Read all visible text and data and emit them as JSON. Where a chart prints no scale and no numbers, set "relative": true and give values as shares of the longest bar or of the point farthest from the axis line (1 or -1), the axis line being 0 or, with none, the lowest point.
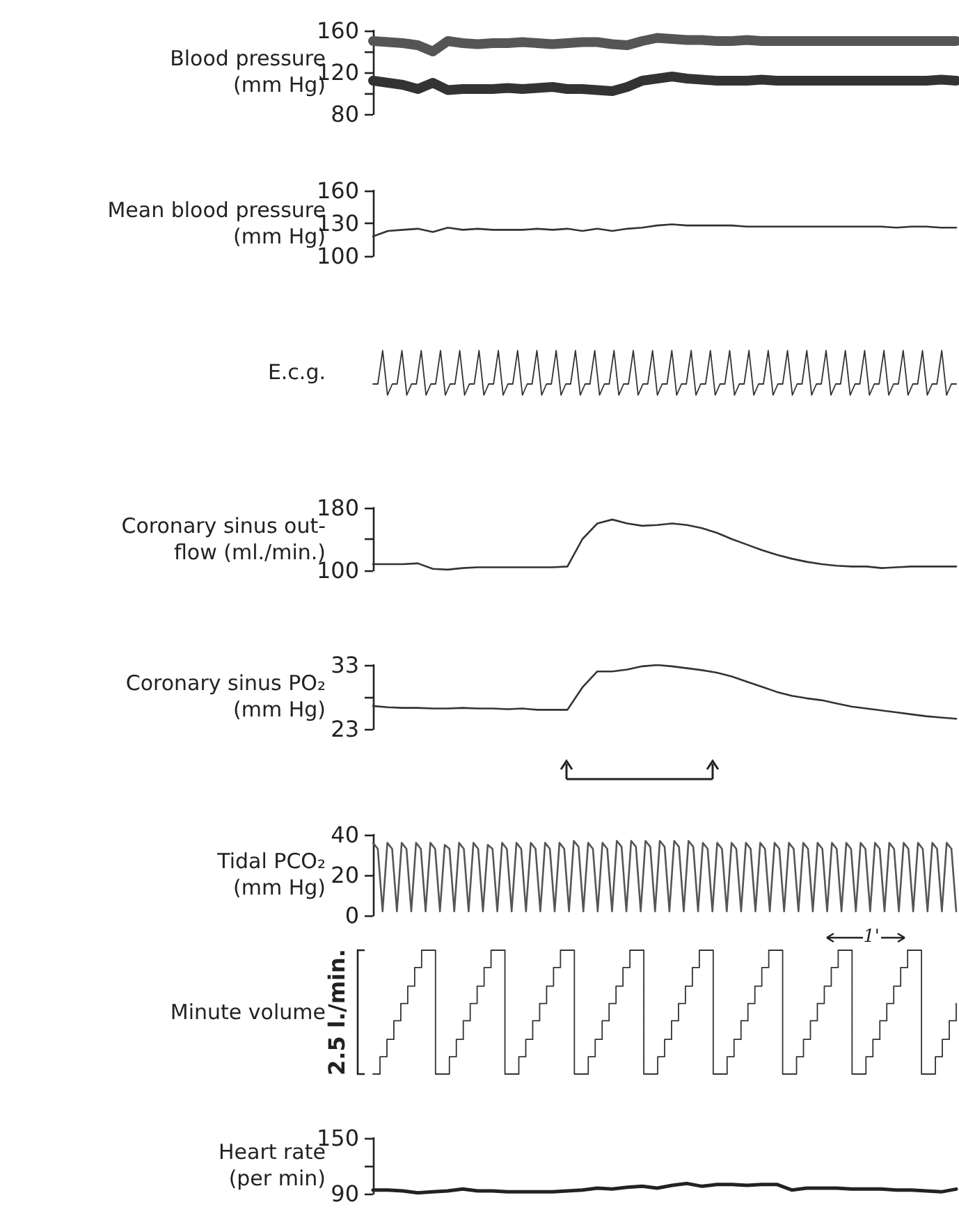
{
  "chart_data": [
    {
      "type": "line",
      "ylabel": "Blood pressure\n(mm Hg)",
      "ylim": [
        80,
        160
      ],
      "yticks": [
        80,
        {
          "value": 100,
          "label": null
        },
        120,
        {
          "value": 140,
          "label": null
        },
        160
      ],
      "tick_labels": "y",
      "grid": false,
      "marker": "none",
      "categories": [
        null,
        null,
        null,
        null,
        null,
        null,
        null,
        null,
        null,
        null,
        null,
        null,
        null,
        null,
        null,
        null,
        null,
        null,
        null,
        null,
        null,
        null,
        null,
        null,
        null,
        null,
        null,
        null,
        null,
        null,
        null,
        null,
        null,
        null,
        null,
        null,
        null,
        null,
        null,
        null
      ],
      "series": [
        {
          "color": "#555555",
          "values": [
            150,
            149,
            148,
            146,
            140,
            150,
            148,
            147,
            148,
            148,
            149,
            148,
            147,
            148,
            149,
            149,
            147,
            146,
            150,
            153,
            152,
            151,
            151,
            150,
            150,
            151,
            150,
            150,
            150,
            150,
            150,
            150,
            150,
            150,
            150,
            150,
            150,
            150,
            150,
            150
          ]
        },
        {
          "color": "#333333",
          "values": [
            112,
            110,
            108,
            104,
            110,
            103,
            104,
            104,
            104,
            105,
            104,
            105,
            106,
            104,
            104,
            103,
            102,
            106,
            112,
            114,
            116,
            114,
            113,
            112,
            112,
            112,
            113,
            112,
            112,
            112,
            112,
            112,
            112,
            112,
            112,
            112,
            112,
            112,
            113,
            112
          ]
        }
      ]
    },
    {
      "type": "line",
      "ylabel": "Mean blood pressure\n(mm Hg)",
      "ylim": [
        100,
        160
      ],
      "yticks": [
        100,
        130,
        160
      ],
      "tick_labels": "y",
      "grid": false,
      "marker": "none",
      "categories": [
        null,
        null,
        null,
        null,
        null,
        null,
        null,
        null,
        null,
        null,
        null,
        null,
        null,
        null,
        null,
        null,
        null,
        null,
        null,
        null,
        null,
        null,
        null,
        null,
        null,
        null,
        null,
        null,
        null,
        null,
        null,
        null,
        null,
        null,
        null,
        null,
        null,
        null,
        null,
        null
      ],
      "series": [
        {
          "color": "#333333",
          "values": [
            118,
            123,
            124,
            125,
            122,
            126,
            124,
            125,
            124,
            124,
            124,
            125,
            124,
            125,
            123,
            125,
            123,
            125,
            126,
            128,
            129,
            128,
            128,
            128,
            128,
            127,
            127,
            127,
            127,
            127,
            127,
            127,
            127,
            127,
            127,
            126,
            127,
            127,
            126,
            126
          ]
        }
      ]
    },
    {
      "type": "line",
      "ylabel": "E.c.g.",
      "relative": true,
      "tick_labels": false,
      "grid": false,
      "marker": "none",
      "categories": [
        null,
        null,
        null,
        null,
        null,
        null,
        null,
        null,
        null,
        null,
        null,
        null,
        null,
        null,
        null,
        null,
        null,
        null,
        null,
        null,
        null,
        null,
        null,
        null,
        null,
        null,
        null,
        null,
        null,
        null,
        null,
        null,
        null,
        null,
        null,
        null,
        null,
        null,
        null,
        null,
        null,
        null,
        null,
        null,
        null,
        null,
        null,
        null,
        null,
        null,
        null,
        null,
        null,
        null,
        null,
        null,
        null,
        null,
        null,
        null,
        null,
        null,
        null,
        null,
        null,
        null,
        null,
        null,
        null,
        null,
        null,
        null,
        null,
        null,
        null,
        null,
        null,
        null,
        null,
        null,
        null,
        null,
        null,
        null,
        null,
        null,
        null,
        null,
        null,
        null,
        null,
        null,
        null,
        null,
        null,
        null,
        null,
        null,
        null,
        null,
        null,
        null,
        null,
        null,
        null,
        null,
        null,
        null,
        null,
        null,
        null,
        null,
        null,
        null,
        null,
        null,
        null,
        null,
        null,
        null,
        null,
        null
      ],
      "series": [
        {
          "color": "#333333",
          "values": [
            0.25,
            0.25,
            1,
            0,
            0.25,
            0.25,
            1,
            0,
            0.25,
            0.25,
            1,
            0,
            0.25,
            0.25,
            1,
            0,
            0.25,
            0.25,
            1,
            0,
            0.25,
            0.25,
            1,
            0,
            0.25,
            0.25,
            1,
            0,
            0.25,
            0.25,
            1,
            0,
            0.25,
            0.25,
            1,
            0,
            0.25,
            0.25,
            1,
            0,
            0.25,
            0.25,
            1,
            0,
            0.25,
            0.25,
            1,
            0,
            0.25,
            0.25,
            1,
            0,
            0.25,
            0.25,
            1,
            0,
            0.25,
            0.25,
            1,
            0,
            0.25,
            0.25,
            1,
            0,
            0.25,
            0.25,
            1,
            0,
            0.25,
            0.25,
            1,
            0,
            0.25,
            0.25,
            1,
            0,
            0.25,
            0.25,
            1,
            0,
            0.25,
            0.25,
            1,
            0,
            0.25,
            0.25,
            1,
            0,
            0.25,
            0.25,
            1,
            0,
            0.25,
            0.25,
            1,
            0,
            0.25,
            0.25,
            1,
            0,
            0.25,
            0.25,
            1,
            0,
            0.25,
            0.25,
            1,
            0,
            0.25,
            0.25,
            1,
            0,
            0.25,
            0.25,
            1,
            0,
            0.25,
            0.25,
            1,
            0,
            0.25,
            0.25
          ]
        }
      ]
    },
    {
      "type": "line",
      "ylabel": "Coronary sinus out-\nflow (ml./min.)",
      "ylim": [
        100,
        180
      ],
      "yticks": [
        100,
        {
          "value": 140,
          "label": null
        },
        180
      ],
      "tick_labels": "y",
      "grid": false,
      "marker": "none",
      "categories": [
        null,
        null,
        null,
        null,
        null,
        null,
        null,
        null,
        null,
        null,
        null,
        null,
        null,
        null,
        null,
        null,
        null,
        null,
        null,
        null,
        null,
        null,
        null,
        null,
        null,
        null,
        null,
        null,
        null,
        null,
        null,
        null,
        null,
        null,
        null,
        null,
        null,
        null,
        null,
        null
      ],
      "series": [
        {
          "color": "#333333",
          "values": [
            108,
            108,
            108,
            109,
            102,
            101,
            103,
            104,
            104,
            104,
            104,
            104,
            104,
            105,
            140,
            160,
            165,
            160,
            157,
            158,
            160,
            158,
            154,
            148,
            140,
            133,
            126,
            120,
            115,
            111,
            108,
            106,
            105,
            105,
            103,
            104,
            105,
            105,
            105,
            105
          ]
        }
      ]
    },
    {
      "type": "line",
      "ylabel": "Coronary sinus PO₂\n(mm Hg)",
      "ylim": [
        23,
        33
      ],
      "yticks": [
        23,
        {
          "value": 28,
          "label": null
        },
        33
      ],
      "tick_labels": "y",
      "grid": false,
      "marker": "none",
      "categories": [
        null,
        null,
        null,
        null,
        null,
        null,
        null,
        null,
        null,
        null,
        null,
        null,
        null,
        null,
        null,
        null,
        null,
        null,
        null,
        null,
        null,
        null,
        null,
        null,
        null,
        null,
        null,
        null,
        null,
        null,
        null,
        null,
        null,
        null,
        null,
        null,
        null,
        null,
        null,
        null
      ],
      "series": [
        {
          "color": "#333333",
          "values": [
            26.6,
            26.4,
            26.3,
            26.3,
            26.2,
            26.2,
            26.3,
            26.2,
            26.2,
            26.1,
            26.2,
            26.0,
            26.0,
            26.0,
            29.5,
            32.0,
            32.0,
            32.3,
            32.8,
            33.0,
            32.8,
            32.5,
            32.2,
            31.8,
            31.2,
            30.4,
            29.6,
            28.8,
            28.2,
            27.8,
            27.5,
            27.0,
            26.5,
            26.2,
            25.9,
            25.6,
            25.3,
            25.0,
            24.8,
            24.6
          ]
        }
      ]
    },
    {
      "type": "line",
      "ylabel": "Tidal PCO₂\n(mm Hg)",
      "ylim": [
        0,
        40
      ],
      "yticks": [
        0,
        20,
        40
      ],
      "tick_labels": "y",
      "grid": false,
      "marker": "none",
      "categories": [
        null,
        null,
        null,
        null,
        null,
        null,
        null,
        null,
        null,
        null,
        null,
        null,
        null,
        null,
        null,
        null,
        null,
        null,
        null,
        null,
        null,
        null,
        null,
        null,
        null,
        null,
        null,
        null,
        null,
        null,
        null,
        null,
        null,
        null,
        null,
        null,
        null,
        null,
        null,
        null,
        null,
        null,
        null,
        null,
        null,
        null,
        null,
        null,
        null,
        null,
        null,
        null,
        null,
        null,
        null,
        null,
        null,
        null,
        null,
        null,
        null,
        null,
        null,
        null,
        null,
        null,
        null,
        null,
        null,
        null,
        null,
        null,
        null,
        null,
        null,
        null,
        null,
        null,
        null,
        null,
        null,
        null,
        null,
        null,
        null,
        null,
        null,
        null,
        null,
        null,
        null,
        null,
        null,
        null,
        null,
        null,
        null,
        null,
        null,
        null,
        null,
        null,
        null,
        null,
        null,
        null,
        null,
        null,
        null,
        null,
        null,
        null,
        null,
        null,
        null,
        null,
        null,
        null,
        null,
        null,
        null,
        null,
        null
      ],
      "series": [
        {
          "color": "#555555",
          "values": [
            36,
            33,
            2,
            36,
            33,
            2,
            36,
            33,
            2,
            36,
            33,
            2,
            36,
            33,
            2,
            35,
            33,
            2,
            36,
            33,
            2,
            36,
            33,
            2,
            35,
            33,
            2,
            36,
            33,
            2,
            36,
            33,
            2,
            36,
            33,
            2,
            36,
            33,
            2,
            36,
            33,
            2,
            37,
            34,
            2,
            36,
            33,
            2,
            36,
            33,
            2,
            37,
            34,
            2,
            37,
            34,
            2,
            37,
            34,
            2,
            37,
            34,
            2,
            37,
            34,
            2,
            37,
            34,
            2,
            36,
            33,
            2,
            36,
            33,
            2,
            36,
            33,
            2,
            36,
            33,
            2,
            36,
            33,
            2,
            36,
            33,
            2,
            36,
            33,
            2,
            36,
            33,
            2,
            36,
            33,
            2,
            36,
            33,
            2,
            36,
            33,
            2,
            36,
            33,
            2,
            36,
            33,
            2,
            36,
            33,
            2,
            36,
            33,
            2,
            36,
            33,
            2,
            36,
            33,
            2,
            36,
            33,
            2
          ]
        }
      ]
    },
    {
      "type": "step",
      "ylabel": "Minute volume",
      "relative": true,
      "tick_labels": false,
      "grid": false,
      "marker": "none",
      "annotations": [
        "2.5 l./min.",
        "1'"
      ],
      "categories": [
        null,
        null,
        null,
        null,
        null,
        null,
        null,
        null,
        null,
        null,
        null,
        null,
        null,
        null,
        null,
        null,
        null,
        null,
        null,
        null,
        null,
        null,
        null,
        null,
        null,
        null,
        null,
        null,
        null,
        null,
        null,
        null,
        null,
        null,
        null,
        null,
        null,
        null,
        null,
        null,
        null,
        null,
        null,
        null,
        null,
        null,
        null,
        null,
        null,
        null,
        null,
        null,
        null,
        null,
        null,
        null,
        null,
        null,
        null,
        null,
        null,
        null,
        null,
        null,
        null,
        null,
        null,
        null,
        null,
        null,
        null,
        null,
        null,
        null,
        null,
        null,
        null,
        null,
        null,
        null,
        null,
        null,
        null,
        null,
        null
      ],
      "series": [
        {
          "color": "#333333",
          "values": [
            0,
            0.14,
            0.28,
            0.43,
            0.57,
            0.71,
            0.86,
            1,
            1,
            0,
            0,
            0.14,
            0.28,
            0.43,
            0.57,
            0.71,
            0.86,
            1,
            1,
            0,
            0,
            0.14,
            0.28,
            0.43,
            0.57,
            0.71,
            0.86,
            1,
            1,
            0,
            0,
            0.14,
            0.28,
            0.43,
            0.57,
            0.71,
            0.86,
            1,
            1,
            0,
            0,
            0.14,
            0.28,
            0.43,
            0.57,
            0.71,
            0.86,
            1,
            1,
            0,
            0,
            0.14,
            0.28,
            0.43,
            0.57,
            0.71,
            0.86,
            1,
            1,
            0,
            0,
            0.14,
            0.28,
            0.43,
            0.57,
            0.71,
            0.86,
            1,
            1,
            0,
            0,
            0.14,
            0.28,
            0.43,
            0.57,
            0.71,
            0.86,
            1,
            1,
            0,
            0,
            0.14,
            0.28,
            0.43,
            0.57
          ]
        }
      ]
    },
    {
      "type": "line",
      "ylabel": "Heart rate\n(per min)",
      "ylim": [
        90,
        150
      ],
      "yticks": [
        90,
        {
          "value": 120,
          "label": null
        },
        150
      ],
      "tick_labels": "y",
      "grid": false,
      "marker": "none",
      "categories": [
        null,
        null,
        null,
        null,
        null,
        null,
        null,
        null,
        null,
        null,
        null,
        null,
        null,
        null,
        null,
        null,
        null,
        null,
        null,
        null,
        null,
        null,
        null,
        null,
        null,
        null,
        null,
        null,
        null,
        null,
        null,
        null,
        null,
        null,
        null,
        null,
        null,
        null,
        null,
        null
      ],
      "series": [
        {
          "color": "#222222",
          "values": [
            94,
            94,
            93,
            91,
            92,
            93,
            95,
            93,
            93,
            92,
            92,
            92,
            92,
            93,
            94,
            96,
            95,
            97,
            98,
            96,
            99,
            101,
            98,
            100,
            100,
            99,
            100,
            100,
            94,
            96,
            96,
            96,
            95,
            95,
            95,
            94,
            94,
            93,
            92,
            95
          ]
        }
      ]
    }
  ]
}
